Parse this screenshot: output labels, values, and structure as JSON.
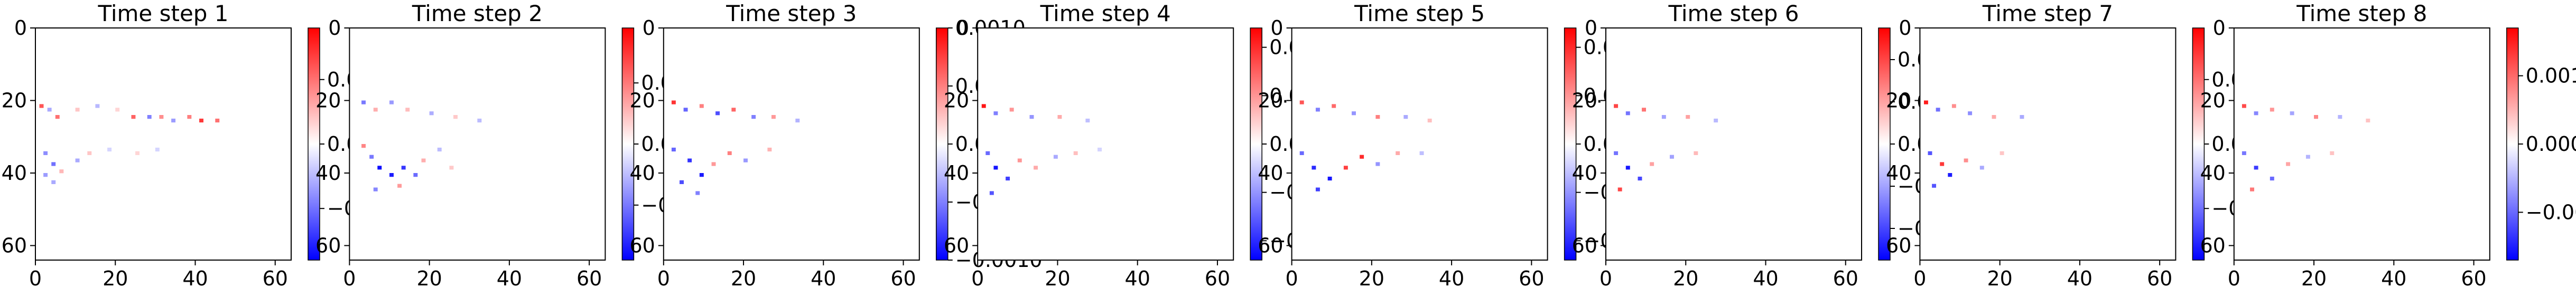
{
  "figure": {
    "background": "#ffffff"
  },
  "colormap": {
    "name": "bwr",
    "low": "#0000ff",
    "mid": "#ffffff",
    "high": "#ff0000"
  },
  "chart_data": [
    {
      "type": "heatmap",
      "title": "Time step 1",
      "xlim": [
        0,
        64
      ],
      "ylim": [
        64,
        0
      ],
      "xticks": [
        "0",
        "20",
        "40",
        "60"
      ],
      "yticks": [
        "0",
        "20",
        "40",
        "60"
      ],
      "colorbar": {
        "vmin": -0.0018,
        "vmax": 0.0018,
        "ticks": [
          0.001,
          0.0,
          -0.001
        ],
        "tick_labels": [
          "0.001",
          "0.000",
          "−0.001"
        ]
      },
      "features": [
        {
          "x": 1,
          "y": 21,
          "v": 0.0012
        },
        {
          "x": 3,
          "y": 22,
          "v": -0.0006
        },
        {
          "x": 5,
          "y": 24,
          "v": 0.001
        },
        {
          "x": 10,
          "y": 22,
          "v": 0.0004
        },
        {
          "x": 15,
          "y": 21,
          "v": -0.0005
        },
        {
          "x": 20,
          "y": 22,
          "v": 0.0003
        },
        {
          "x": 24,
          "y": 24,
          "v": 0.0011
        },
        {
          "x": 28,
          "y": 24,
          "v": -0.0009
        },
        {
          "x": 31,
          "y": 24,
          "v": 0.0008
        },
        {
          "x": 34,
          "y": 25,
          "v": -0.0007
        },
        {
          "x": 38,
          "y": 24,
          "v": 0.0009
        },
        {
          "x": 41,
          "y": 25,
          "v": 0.0014
        },
        {
          "x": 45,
          "y": 25,
          "v": 0.001
        },
        {
          "x": 2,
          "y": 34,
          "v": -0.0008
        },
        {
          "x": 4,
          "y": 37,
          "v": -0.001
        },
        {
          "x": 2,
          "y": 40,
          "v": -0.0007
        },
        {
          "x": 6,
          "y": 39,
          "v": 0.0005
        },
        {
          "x": 10,
          "y": 36,
          "v": -0.0006
        },
        {
          "x": 13,
          "y": 34,
          "v": 0.0004
        },
        {
          "x": 18,
          "y": 33,
          "v": -0.0003
        },
        {
          "x": 25,
          "y": 34,
          "v": 0.0003
        },
        {
          "x": 30,
          "y": 33,
          "v": -0.0003
        },
        {
          "x": 4,
          "y": 42,
          "v": -0.0006
        }
      ]
    },
    {
      "type": "heatmap",
      "title": "Time step 2",
      "xlim": [
        0,
        64
      ],
      "ylim": [
        64,
        0
      ],
      "xticks": [
        "0",
        "20",
        "40",
        "60"
      ],
      "yticks": [
        "0",
        "20",
        "40",
        "60"
      ],
      "colorbar": {
        "vmin": -0.00038,
        "vmax": 0.00038,
        "ticks": [
          0.0002,
          0.0,
          -0.0002
        ],
        "tick_labels": [
          "0.0002",
          "0.0000",
          "−0.0002"
        ]
      },
      "features": [
        {
          "x": 3,
          "y": 20,
          "v": -0.0002
        },
        {
          "x": 6,
          "y": 22,
          "v": 0.00012
        },
        {
          "x": 10,
          "y": 20,
          "v": -0.00015
        },
        {
          "x": 14,
          "y": 22,
          "v": 0.0001
        },
        {
          "x": 20,
          "y": 23,
          "v": -0.00012
        },
        {
          "x": 26,
          "y": 24,
          "v": 8e-05
        },
        {
          "x": 32,
          "y": 25,
          "v": -0.0001
        },
        {
          "x": 3,
          "y": 32,
          "v": 0.00018
        },
        {
          "x": 5,
          "y": 35,
          "v": -0.0002
        },
        {
          "x": 7,
          "y": 38,
          "v": -0.00036
        },
        {
          "x": 10,
          "y": 40,
          "v": -0.00034
        },
        {
          "x": 13,
          "y": 38,
          "v": -0.0003
        },
        {
          "x": 16,
          "y": 40,
          "v": -0.00022
        },
        {
          "x": 12,
          "y": 43,
          "v": 0.00015
        },
        {
          "x": 18,
          "y": 36,
          "v": 0.00012
        },
        {
          "x": 22,
          "y": 33,
          "v": -0.0001
        },
        {
          "x": 6,
          "y": 44,
          "v": -0.00018
        },
        {
          "x": 25,
          "y": 38,
          "v": 8e-05
        }
      ]
    },
    {
      "type": "heatmap",
      "title": "Time step 3",
      "xlim": [
        0,
        64
      ],
      "ylim": [
        64,
        0
      ],
      "xticks": [
        "0",
        "20",
        "40",
        "60"
      ],
      "yticks": [
        "0",
        "20",
        "40",
        "60"
      ],
      "colorbar": {
        "vmin": -0.001,
        "vmax": 0.001,
        "ticks": [
          0.001,
          0.0005,
          0.0,
          -0.0005,
          -0.001
        ],
        "tick_labels": [
          "0.0010",
          "0.0005",
          "0.0000",
          "−0.0005",
          "−0.0010"
        ]
      },
      "features": [
        {
          "x": 2,
          "y": 20,
          "v": 0.0008
        },
        {
          "x": 5,
          "y": 22,
          "v": -0.0006
        },
        {
          "x": 9,
          "y": 21,
          "v": 0.0005
        },
        {
          "x": 13,
          "y": 23,
          "v": -0.0007
        },
        {
          "x": 17,
          "y": 22,
          "v": 0.0006
        },
        {
          "x": 22,
          "y": 24,
          "v": -0.0005
        },
        {
          "x": 27,
          "y": 24,
          "v": 0.0004
        },
        {
          "x": 33,
          "y": 25,
          "v": -0.0003
        },
        {
          "x": 2,
          "y": 33,
          "v": -0.0006
        },
        {
          "x": 6,
          "y": 36,
          "v": -0.0008
        },
        {
          "x": 9,
          "y": 40,
          "v": -0.0009
        },
        {
          "x": 4,
          "y": 42,
          "v": -0.0007
        },
        {
          "x": 12,
          "y": 37,
          "v": 0.0004
        },
        {
          "x": 16,
          "y": 34,
          "v": 0.0005
        },
        {
          "x": 20,
          "y": 36,
          "v": -0.0004
        },
        {
          "x": 26,
          "y": 33,
          "v": 0.0003
        },
        {
          "x": 8,
          "y": 45,
          "v": -0.0005
        }
      ]
    },
    {
      "type": "heatmap",
      "title": "Time step 4",
      "xlim": [
        0,
        64
      ],
      "ylim": [
        64,
        0
      ],
      "xticks": [
        "0",
        "20",
        "40",
        "60"
      ],
      "yticks": [
        "0",
        "20",
        "40",
        "60"
      ],
      "colorbar": {
        "vmin": -0.0012,
        "vmax": 0.0012,
        "ticks": [
          0.001,
          0.0005,
          0.0,
          -0.0005,
          -0.001
        ],
        "tick_labels": [
          "0.0010",
          "0.0005",
          "0.0000",
          "−0.0005",
          "−0.0010"
        ]
      },
      "features": [
        {
          "x": 1,
          "y": 21,
          "v": 0.0011
        },
        {
          "x": 4,
          "y": 23,
          "v": -0.0006
        },
        {
          "x": 8,
          "y": 22,
          "v": 0.0005
        },
        {
          "x": 13,
          "y": 24,
          "v": -0.0005
        },
        {
          "x": 20,
          "y": 24,
          "v": 0.0004
        },
        {
          "x": 27,
          "y": 25,
          "v": -0.0003
        },
        {
          "x": 2,
          "y": 34,
          "v": -0.0007
        },
        {
          "x": 4,
          "y": 38,
          "v": -0.0011
        },
        {
          "x": 7,
          "y": 41,
          "v": -0.0009
        },
        {
          "x": 3,
          "y": 45,
          "v": -0.0008
        },
        {
          "x": 10,
          "y": 36,
          "v": 0.0005
        },
        {
          "x": 14,
          "y": 38,
          "v": 0.0004
        },
        {
          "x": 19,
          "y": 35,
          "v": -0.0004
        },
        {
          "x": 24,
          "y": 34,
          "v": 0.0003
        },
        {
          "x": 30,
          "y": 33,
          "v": -0.0002
        }
      ]
    },
    {
      "type": "heatmap",
      "title": "Time step 5",
      "xlim": [
        0,
        64
      ],
      "ylim": [
        64,
        0
      ],
      "xticks": [
        "0",
        "20",
        "40",
        "60"
      ],
      "yticks": [
        "0",
        "20",
        "40",
        "60"
      ],
      "colorbar": {
        "vmin": -0.0012,
        "vmax": 0.0012,
        "ticks": [
          0.001,
          0.0005,
          0.0,
          -0.0005,
          -0.001
        ],
        "tick_labels": [
          "0.0010",
          "0.0005",
          "0.0000",
          "−0.0005",
          "−0.0010"
        ]
      },
      "features": [
        {
          "x": 2,
          "y": 20,
          "v": 0.0008
        },
        {
          "x": 6,
          "y": 22,
          "v": -0.0006
        },
        {
          "x": 10,
          "y": 21,
          "v": 0.0007
        },
        {
          "x": 15,
          "y": 23,
          "v": -0.0005
        },
        {
          "x": 21,
          "y": 24,
          "v": 0.0006
        },
        {
          "x": 28,
          "y": 24,
          "v": -0.0004
        },
        {
          "x": 34,
          "y": 25,
          "v": 0.0003
        },
        {
          "x": 2,
          "y": 34,
          "v": -0.0007
        },
        {
          "x": 5,
          "y": 38,
          "v": -0.001
        },
        {
          "x": 9,
          "y": 41,
          "v": -0.0011
        },
        {
          "x": 13,
          "y": 38,
          "v": 0.0009
        },
        {
          "x": 17,
          "y": 35,
          "v": 0.001
        },
        {
          "x": 21,
          "y": 37,
          "v": -0.0005
        },
        {
          "x": 6,
          "y": 44,
          "v": -0.0009
        },
        {
          "x": 26,
          "y": 34,
          "v": 0.0004
        },
        {
          "x": 32,
          "y": 34,
          "v": -0.0003
        }
      ]
    },
    {
      "type": "heatmap",
      "title": "Time step 6",
      "xlim": [
        0,
        64
      ],
      "ylim": [
        64,
        0
      ],
      "xticks": [
        "0",
        "20",
        "40",
        "60"
      ],
      "yticks": [
        "0",
        "20",
        "40",
        "60"
      ],
      "colorbar": {
        "vmin": -0.00055,
        "vmax": 0.00055,
        "ticks": [
          0.0004,
          0.0002,
          0.0,
          -0.0002,
          -0.0004
        ],
        "tick_labels": [
          "0.0004",
          "0.0002",
          "0.0000",
          "−0.0002",
          "−0.0004"
        ]
      },
      "features": [
        {
          "x": 2,
          "y": 21,
          "v": 0.0004
        },
        {
          "x": 5,
          "y": 23,
          "v": -0.0003
        },
        {
          "x": 9,
          "y": 22,
          "v": 0.0003
        },
        {
          "x": 14,
          "y": 24,
          "v": -0.0002
        },
        {
          "x": 20,
          "y": 24,
          "v": 0.0002
        },
        {
          "x": 27,
          "y": 25,
          "v": -0.00015
        },
        {
          "x": 2,
          "y": 34,
          "v": -0.0003
        },
        {
          "x": 5,
          "y": 38,
          "v": -0.0005
        },
        {
          "x": 8,
          "y": 41,
          "v": -0.0004
        },
        {
          "x": 3,
          "y": 44,
          "v": 0.0004
        },
        {
          "x": 11,
          "y": 37,
          "v": 0.0002
        },
        {
          "x": 16,
          "y": 35,
          "v": -0.0002
        },
        {
          "x": 22,
          "y": 34,
          "v": 0.00015
        }
      ]
    },
    {
      "type": "heatmap",
      "title": "Time step 7",
      "xlim": [
        0,
        64
      ],
      "ylim": [
        64,
        0
      ],
      "xticks": [
        "0",
        "20",
        "40",
        "60"
      ],
      "yticks": [
        "0",
        "20",
        "40",
        "60"
      ],
      "colorbar": {
        "vmin": -0.0009,
        "vmax": 0.0009,
        "ticks": [
          0.0005,
          0.0,
          -0.0005
        ],
        "tick_labels": [
          "0.0005",
          "0.0000",
          "−0.0005"
        ]
      },
      "features": [
        {
          "x": 1,
          "y": 20,
          "v": 0.0008
        },
        {
          "x": 4,
          "y": 22,
          "v": -0.0005
        },
        {
          "x": 8,
          "y": 21,
          "v": 0.0004
        },
        {
          "x": 12,
          "y": 23,
          "v": -0.0004
        },
        {
          "x": 18,
          "y": 24,
          "v": 0.0003
        },
        {
          "x": 25,
          "y": 24,
          "v": -0.0003
        },
        {
          "x": 2,
          "y": 34,
          "v": -0.0006
        },
        {
          "x": 5,
          "y": 37,
          "v": 0.0007
        },
        {
          "x": 7,
          "y": 40,
          "v": -0.0008
        },
        {
          "x": 3,
          "y": 43,
          "v": -0.0006
        },
        {
          "x": 11,
          "y": 36,
          "v": 0.0004
        },
        {
          "x": 15,
          "y": 38,
          "v": -0.0003
        },
        {
          "x": 20,
          "y": 34,
          "v": 0.0002
        }
      ]
    },
    {
      "type": "heatmap",
      "title": "Time step 8",
      "xlim": [
        0,
        64
      ],
      "ylim": [
        64,
        0
      ],
      "xticks": [
        "0",
        "20",
        "40",
        "60"
      ],
      "yticks": [
        "0",
        "20",
        "40",
        "60"
      ],
      "colorbar": {
        "vmin": -0.0017,
        "vmax": 0.0017,
        "ticks": [
          0.001,
          0.0,
          -0.001
        ],
        "tick_labels": [
          "0.001",
          "0.000",
          "−0.001"
        ]
      },
      "features": [
        {
          "x": 2,
          "y": 21,
          "v": 0.0012
        },
        {
          "x": 5,
          "y": 23,
          "v": -0.0008
        },
        {
          "x": 9,
          "y": 22,
          "v": 0.0007
        },
        {
          "x": 14,
          "y": 23,
          "v": -0.0006
        },
        {
          "x": 20,
          "y": 24,
          "v": 0.0008
        },
        {
          "x": 26,
          "y": 24,
          "v": -0.0005
        },
        {
          "x": 33,
          "y": 25,
          "v": 0.0004
        },
        {
          "x": 2,
          "y": 34,
          "v": -0.0009
        },
        {
          "x": 5,
          "y": 38,
          "v": -0.0013
        },
        {
          "x": 9,
          "y": 41,
          "v": -0.001
        },
        {
          "x": 4,
          "y": 44,
          "v": 0.0009
        },
        {
          "x": 13,
          "y": 37,
          "v": 0.0006
        },
        {
          "x": 18,
          "y": 35,
          "v": -0.0005
        },
        {
          "x": 24,
          "y": 34,
          "v": 0.0004
        }
      ]
    }
  ]
}
